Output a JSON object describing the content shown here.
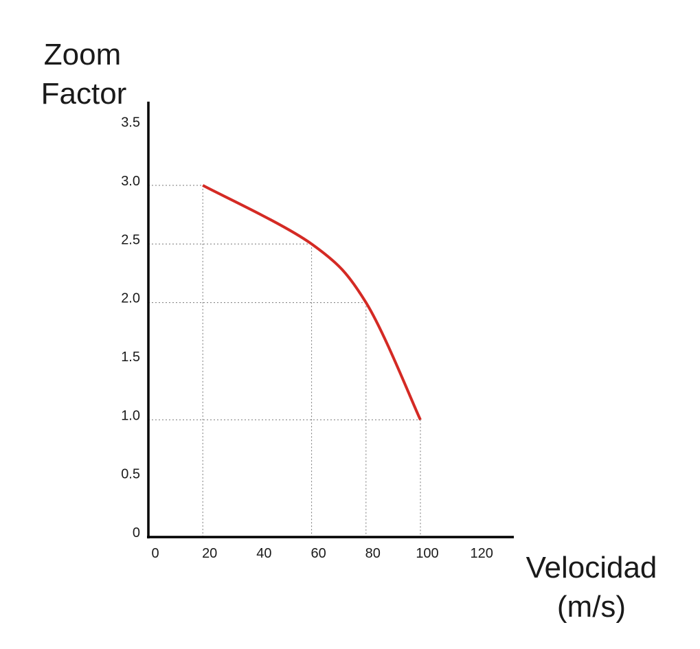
{
  "chart_data": {
    "type": "line",
    "title": "",
    "ylabel_lines": [
      "Zoom",
      "Factor"
    ],
    "xlabel_lines": [
      "Velocidad",
      "(m/s)"
    ],
    "x_ticks": [
      "0",
      "20",
      "40",
      "60",
      "80",
      "100",
      "120"
    ],
    "y_ticks": [
      "0",
      "0.5",
      "1.0",
      "1.5",
      "2.0",
      "2.5",
      "3.0",
      "3.5"
    ],
    "xlim": [
      0,
      133
    ],
    "ylim": [
      0,
      3.7
    ],
    "grid": "dotted guide lines at data points",
    "series": [
      {
        "name": "Zoom Factor",
        "color": "#d42a24",
        "x": [
          20,
          60,
          80,
          100
        ],
        "y": [
          3.0,
          2.5,
          2.0,
          1.0
        ]
      }
    ]
  }
}
